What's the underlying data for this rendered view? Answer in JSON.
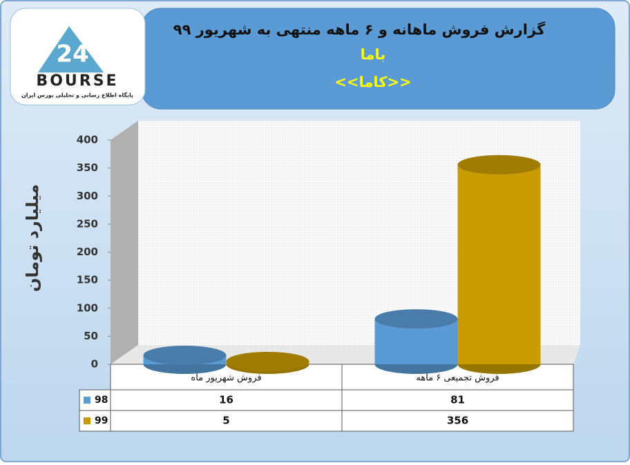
{
  "logo": {
    "brand": "BOURSE",
    "tagline": "پایگاه اطلاع رسانی و تحلیلی بورس ایران"
  },
  "chart_data": {
    "type": "bar",
    "title": "گزارش فروش ماهانه و ۶ ماهه منتهی به شهریور ۹۹",
    "subtitle": "باما",
    "company": "<<کاما>>",
    "y_label": "میلیارد تومان",
    "categories": [
      "فروش شهریور  ماه",
      "فروش تجمیعی ۶ ماهه"
    ],
    "series": [
      {
        "name": "98",
        "color": "#5b9bd5",
        "values": [
          16,
          81
        ]
      },
      {
        "name": "99",
        "color": "#c89b00",
        "values": [
          5,
          356
        ]
      }
    ],
    "ylim": [
      0,
      400
    ],
    "yticks": [
      0,
      50,
      100,
      150,
      200,
      250,
      300,
      350,
      400
    ],
    "grid": false
  }
}
